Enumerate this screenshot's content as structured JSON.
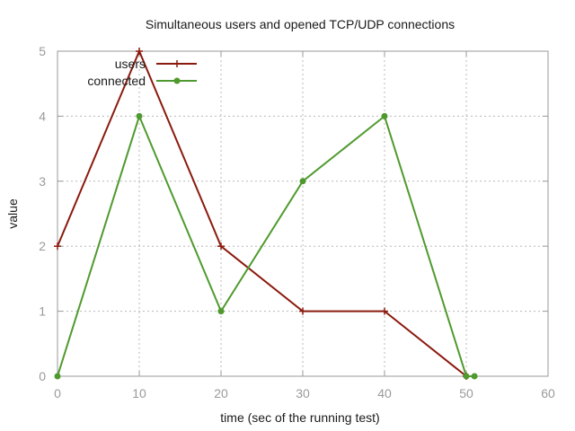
{
  "chart_data": {
    "type": "line",
    "title": "Simultaneous users and opened TCP/UDP connections",
    "xlabel": "time (sec of the running test)",
    "ylabel": "value",
    "xlim": [
      0,
      60
    ],
    "ylim": [
      0,
      5
    ],
    "x_ticks": [
      "0",
      "10",
      "20",
      "30",
      "40",
      "50",
      "60"
    ],
    "y_ticks": [
      "0",
      "1",
      "2",
      "3",
      "4",
      "5"
    ],
    "grid": true,
    "legend_position": "top-left",
    "series": [
      {
        "name": "users",
        "color": "#8b1a0e",
        "marker": "plus",
        "x": [
          0,
          10,
          20,
          30,
          40,
          50
        ],
        "y": [
          2,
          5,
          2,
          1,
          1,
          0
        ]
      },
      {
        "name": "connected",
        "color": "#4f9a2e",
        "marker": "dot",
        "x": [
          0,
          10,
          20,
          30,
          40,
          50,
          51
        ],
        "y": [
          0,
          4,
          1,
          3,
          4,
          0,
          0
        ]
      }
    ]
  },
  "colors": {
    "grid": "#b8b8b8",
    "frame": "#9a9a9a"
  }
}
